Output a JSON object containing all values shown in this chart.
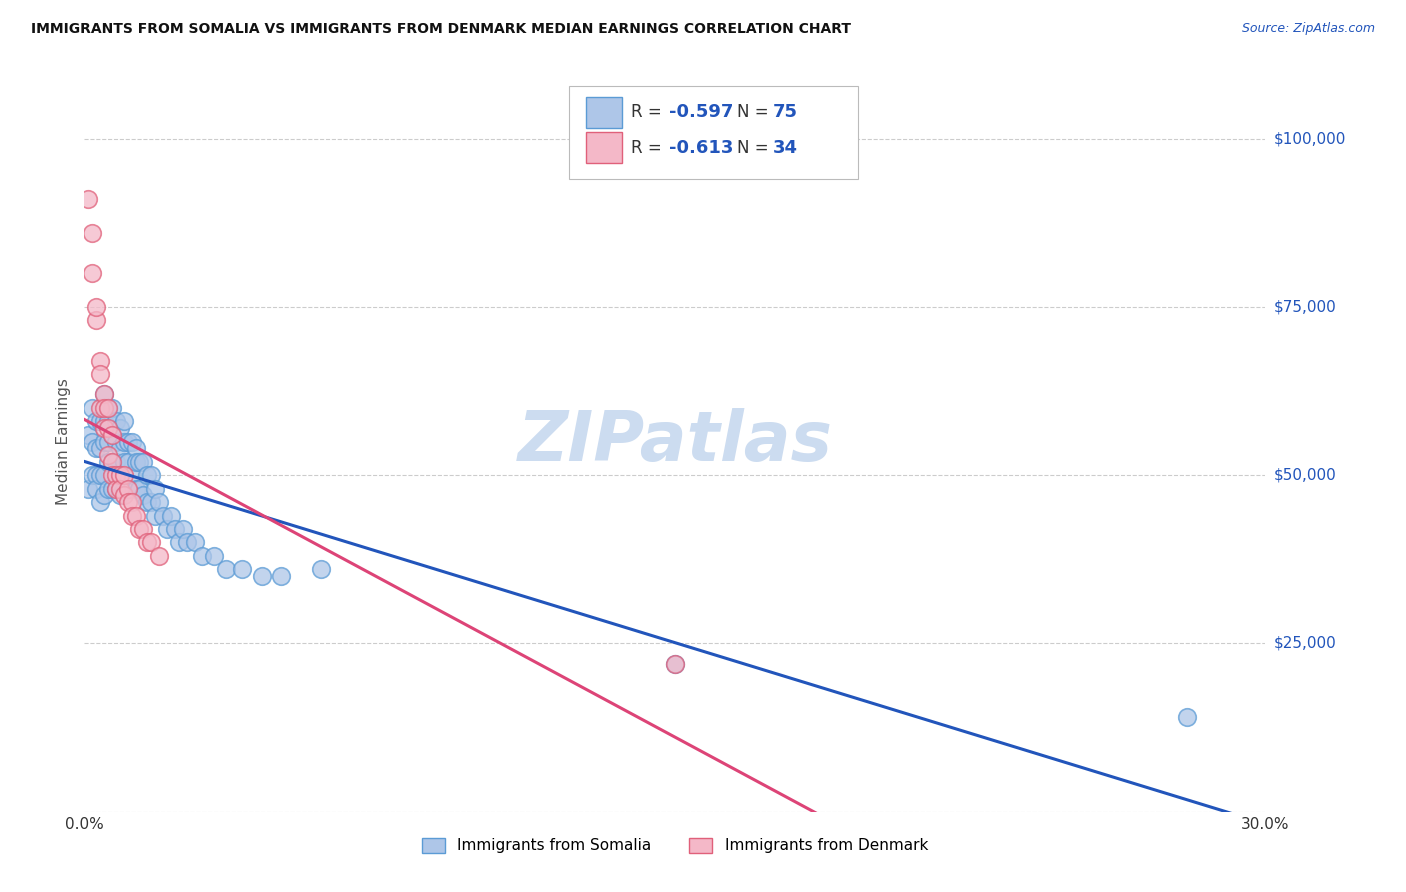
{
  "title": "IMMIGRANTS FROM SOMALIA VS IMMIGRANTS FROM DENMARK MEDIAN EARNINGS CORRELATION CHART",
  "source": "Source: ZipAtlas.com",
  "ylabel": "Median Earnings",
  "xlim": [
    0.0,
    0.3
  ],
  "ylim": [
    0,
    110000
  ],
  "yticks": [
    0,
    25000,
    50000,
    75000,
    100000
  ],
  "ytick_labels": [
    "",
    "$25,000",
    "$50,000",
    "$75,000",
    "$100,000"
  ],
  "somalia_color": "#aec6e8",
  "somalia_edge": "#5b9bd5",
  "denmark_color": "#f4b8c8",
  "denmark_edge": "#e0607a",
  "trend_somalia_color": "#2255bb",
  "trend_denmark_color": "#dd4477",
  "somalia_label": "Immigrants from Somalia",
  "denmark_label": "Immigrants from Denmark",
  "watermark": "ZIPatlas",
  "watermark_color": "#ccdcf0",
  "background_color": "#ffffff",
  "grid_color": "#cccccc",
  "title_color": "#111111",
  "axis_label_color": "#2255bb",
  "somalia_x": [
    0.001,
    0.001,
    0.002,
    0.002,
    0.002,
    0.003,
    0.003,
    0.003,
    0.003,
    0.004,
    0.004,
    0.004,
    0.004,
    0.005,
    0.005,
    0.005,
    0.005,
    0.005,
    0.006,
    0.006,
    0.006,
    0.006,
    0.006,
    0.007,
    0.007,
    0.007,
    0.007,
    0.008,
    0.008,
    0.008,
    0.008,
    0.009,
    0.009,
    0.009,
    0.009,
    0.01,
    0.01,
    0.01,
    0.01,
    0.011,
    0.011,
    0.011,
    0.012,
    0.012,
    0.013,
    0.013,
    0.013,
    0.014,
    0.014,
    0.015,
    0.015,
    0.016,
    0.016,
    0.017,
    0.017,
    0.018,
    0.018,
    0.019,
    0.02,
    0.021,
    0.022,
    0.023,
    0.024,
    0.025,
    0.026,
    0.028,
    0.03,
    0.033,
    0.036,
    0.04,
    0.045,
    0.05,
    0.06,
    0.15,
    0.28
  ],
  "somalia_y": [
    56000,
    48000,
    60000,
    55000,
    50000,
    58000,
    54000,
    50000,
    48000,
    58000,
    54000,
    50000,
    46000,
    62000,
    58000,
    55000,
    50000,
    47000,
    60000,
    58000,
    55000,
    52000,
    48000,
    60000,
    56000,
    52000,
    48000,
    58000,
    55000,
    52000,
    48000,
    57000,
    54000,
    50000,
    47000,
    58000,
    55000,
    52000,
    48000,
    55000,
    52000,
    48000,
    55000,
    50000,
    54000,
    52000,
    48000,
    52000,
    48000,
    52000,
    47000,
    50000,
    46000,
    50000,
    46000,
    48000,
    44000,
    46000,
    44000,
    42000,
    44000,
    42000,
    40000,
    42000,
    40000,
    40000,
    38000,
    38000,
    36000,
    36000,
    35000,
    35000,
    36000,
    22000,
    14000
  ],
  "denmark_x": [
    0.001,
    0.002,
    0.002,
    0.003,
    0.003,
    0.004,
    0.004,
    0.004,
    0.005,
    0.005,
    0.005,
    0.006,
    0.006,
    0.006,
    0.007,
    0.007,
    0.007,
    0.008,
    0.008,
    0.009,
    0.009,
    0.01,
    0.01,
    0.011,
    0.011,
    0.012,
    0.012,
    0.013,
    0.014,
    0.015,
    0.016,
    0.017,
    0.019,
    0.15
  ],
  "denmark_y": [
    91000,
    86000,
    80000,
    73000,
    75000,
    67000,
    65000,
    60000,
    62000,
    60000,
    57000,
    60000,
    57000,
    53000,
    56000,
    52000,
    50000,
    50000,
    48000,
    50000,
    48000,
    50000,
    47000,
    48000,
    46000,
    46000,
    44000,
    44000,
    42000,
    42000,
    40000,
    40000,
    38000,
    22000
  ]
}
